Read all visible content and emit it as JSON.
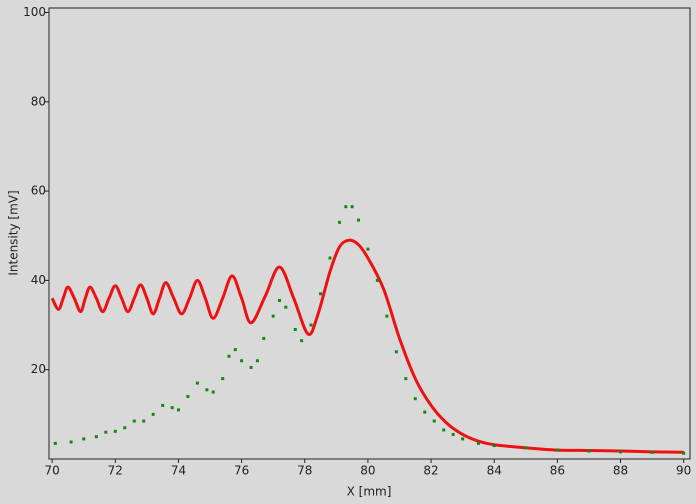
{
  "chart_data": {
    "type": "line",
    "x_label": "X [mm]",
    "y_label": "Intensity [mV]",
    "xlim": [
      69.9,
      90.2
    ],
    "ylim": [
      0,
      101
    ],
    "xticks": [
      70,
      72,
      74,
      76,
      78,
      80,
      82,
      84,
      86,
      88,
      90
    ],
    "yticks": [
      20,
      40,
      60,
      80,
      100
    ],
    "series": [
      {
        "color": "#ee1111",
        "mode": "line",
        "x": [
          70.0,
          70.2,
          70.35,
          70.5,
          70.7,
          70.9,
          71.05,
          71.2,
          71.4,
          71.6,
          71.8,
          72.0,
          72.2,
          72.4,
          72.6,
          72.8,
          73.0,
          73.2,
          73.4,
          73.6,
          73.85,
          74.1,
          74.35,
          74.6,
          74.85,
          75.1,
          75.4,
          75.7,
          76.0,
          76.3,
          76.75,
          77.2,
          77.65,
          78.1,
          78.4,
          78.8,
          79.1,
          79.4,
          79.7,
          80.0,
          80.5,
          81.0,
          81.5,
          82.0,
          82.5,
          83.0,
          83.5,
          84.0,
          85.0,
          86.0,
          87.0,
          88.0,
          89.0,
          90.0
        ],
        "values": [
          36,
          33.5,
          36,
          38.5,
          36,
          33,
          36,
          38.5,
          36,
          33,
          36,
          38.8,
          36,
          33,
          36,
          39,
          36,
          32.5,
          36,
          39.5,
          36,
          32.5,
          36,
          40,
          36,
          31.5,
          36,
          41,
          36,
          30.5,
          36.5,
          43,
          36,
          28,
          32,
          42,
          47.5,
          49,
          48,
          45,
          38,
          27,
          18,
          12,
          8,
          5.5,
          4,
          3.2,
          2.5,
          2,
          1.9,
          1.8,
          1.6,
          1.5
        ]
      },
      {
        "color": "#118811",
        "mode": "markers",
        "x": [
          70.1,
          70.6,
          71.0,
          71.4,
          71.7,
          72.0,
          72.3,
          72.6,
          72.9,
          73.2,
          73.5,
          73.8,
          74.0,
          74.3,
          74.6,
          74.9,
          75.1,
          75.4,
          75.6,
          75.8,
          76.0,
          76.3,
          76.5,
          76.7,
          77.0,
          77.2,
          77.4,
          77.7,
          77.9,
          78.2,
          78.5,
          78.8,
          79.1,
          79.3,
          79.5,
          79.7,
          80.0,
          80.3,
          80.6,
          80.9,
          81.2,
          81.5,
          81.8,
          82.1,
          82.4,
          82.7,
          83.0,
          83.5,
          84.0,
          85.0,
          86.0,
          87.0,
          88.0,
          89.0,
          90.0
        ],
        "values": [
          3.5,
          3.8,
          4.5,
          5,
          6,
          6.2,
          7,
          8.5,
          8.5,
          10,
          12,
          11.5,
          11,
          14,
          17,
          15.5,
          15,
          18,
          23,
          24.5,
          22,
          20.5,
          22,
          27,
          32,
          35.5,
          34,
          29,
          26.5,
          30,
          37,
          45,
          53,
          56.5,
          56.5,
          53.5,
          47,
          40,
          32,
          24,
          18,
          13.5,
          10.5,
          8.5,
          6.5,
          5.5,
          4.5,
          3.5,
          3,
          2.5,
          2,
          1.8,
          1.6,
          1.5,
          1.3
        ]
      }
    ]
  }
}
